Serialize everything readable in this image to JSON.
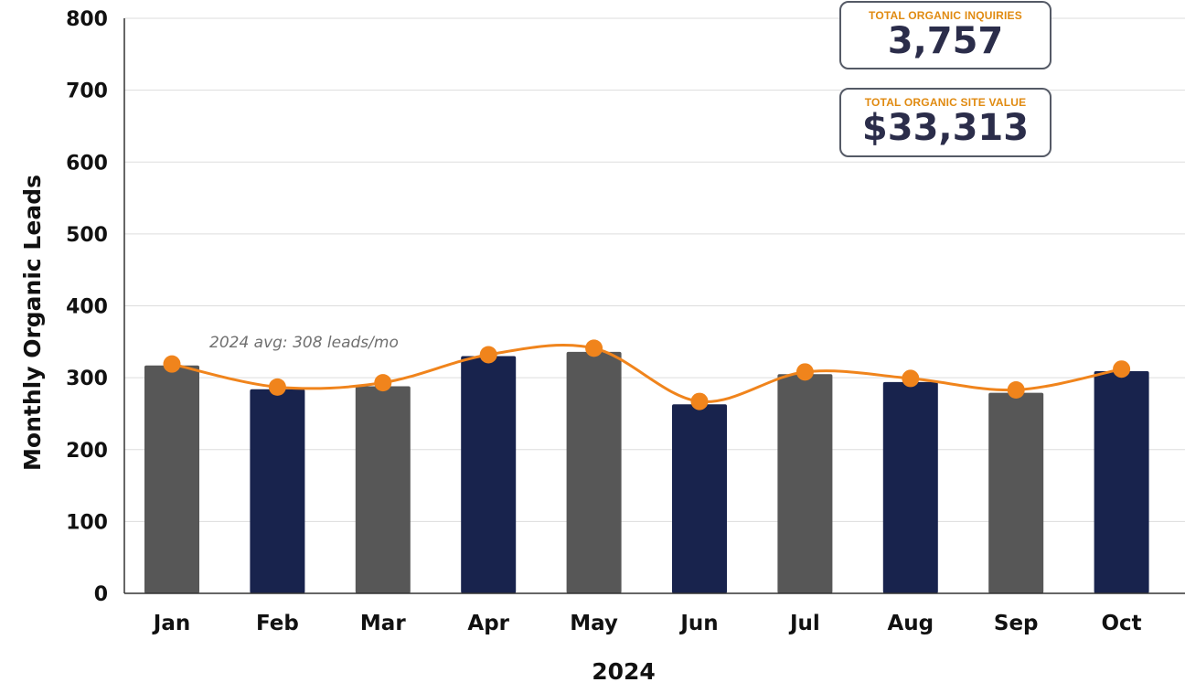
{
  "chart_data": {
    "type": "bar",
    "categories": [
      "Jan",
      "Feb",
      "Mar",
      "Apr",
      "May",
      "Jun",
      "Jul",
      "Aug",
      "Sep",
      "Oct"
    ],
    "series": [
      {
        "values": [
          317,
          284,
          288,
          330,
          336,
          263,
          305,
          294,
          279,
          309
        ]
      },
      {
        "type": "line",
        "values": [
          319,
          287,
          293,
          332,
          341,
          267,
          308,
          299,
          283,
          312
        ]
      }
    ],
    "xlabel": "2024",
    "ylabel": "Monthly Organic Leads",
    "ylim": [
      0,
      800
    ],
    "yticks": [
      0,
      100,
      200,
      300,
      400,
      500,
      600,
      700,
      800
    ],
    "grid": true,
    "annotation": "2024 avg: 308 leads/mo",
    "colors": {
      "bar_gray": "#575757",
      "bar_navy": "#18234d",
      "line": "#f0841c",
      "grid": "#dddddd"
    }
  },
  "kpis": [
    {
      "label": "TOTAL ORGANIC INQUIRIES",
      "value": "3,757"
    },
    {
      "label": "TOTAL ORGANIC SITE VALUE",
      "value": "$33,313"
    }
  ]
}
